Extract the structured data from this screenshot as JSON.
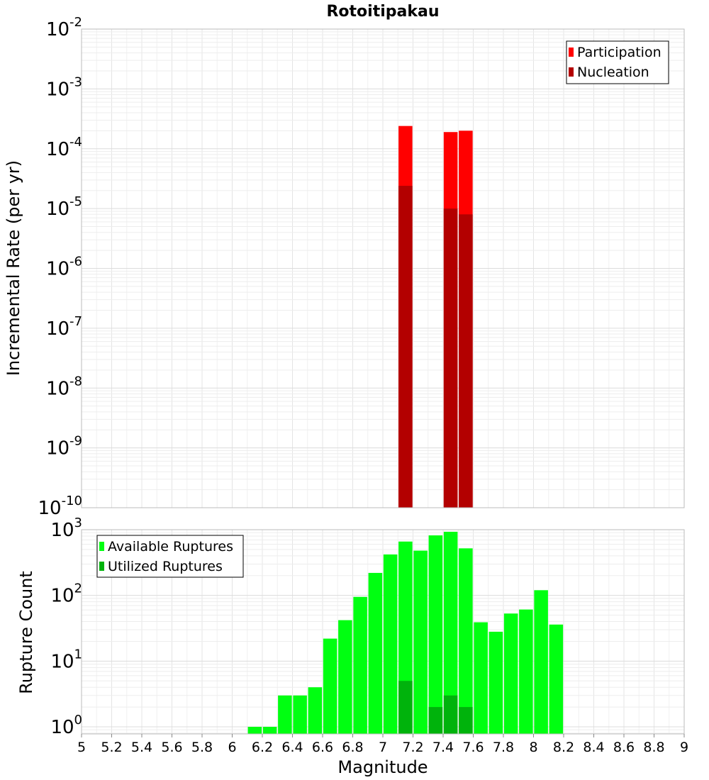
{
  "title": "Rotoitipakau",
  "chart_data": [
    {
      "type": "bar",
      "panel": "incremental-rate",
      "ylabel": "Incremental Rate (per yr)",
      "yscale": "log",
      "ylim": [
        1e-10,
        0.01
      ],
      "xlim": [
        5,
        9
      ],
      "ytick_exponents": [
        "-10",
        "-9",
        "-8",
        "-7",
        "-6",
        "-5",
        "-4",
        "-3",
        "-2"
      ],
      "ytick_base": "10",
      "grid": true,
      "legend_position": "top-right",
      "series": [
        {
          "name": "Participation",
          "color": "#ff0000",
          "points": [
            {
              "x": 7.15,
              "y": 0.00024
            },
            {
              "x": 7.45,
              "y": 0.00019
            },
            {
              "x": 7.55,
              "y": 0.0002
            }
          ]
        },
        {
          "name": "Nucleation",
          "color": "#b30000",
          "points": [
            {
              "x": 7.15,
              "y": 2.4e-05
            },
            {
              "x": 7.45,
              "y": 1e-05
            },
            {
              "x": 7.55,
              "y": 8e-06
            }
          ]
        }
      ]
    },
    {
      "type": "bar",
      "panel": "rupture-count",
      "xlabel": "Magnitude",
      "ylabel": "Rupture Count",
      "yscale": "log",
      "ylim": [
        0.78,
        1000
      ],
      "xlim": [
        5,
        9
      ],
      "xticks": [
        "5",
        "5.2",
        "5.4",
        "5.6",
        "5.8",
        "6",
        "6.2",
        "6.4",
        "6.6",
        "6.8",
        "7",
        "7.2",
        "7.4",
        "7.6",
        "7.8",
        "8",
        "8.2",
        "8.4",
        "8.6",
        "8.8",
        "9"
      ],
      "ytick_exponents": [
        "0",
        "1",
        "2",
        "3"
      ],
      "ytick_base": "10",
      "grid": true,
      "legend_position": "top-left",
      "series": [
        {
          "name": "Available Ruptures",
          "color": "#00ff11",
          "points": [
            {
              "x": 6.15,
              "y": 1
            },
            {
              "x": 6.25,
              "y": 1
            },
            {
              "x": 6.35,
              "y": 3
            },
            {
              "x": 6.45,
              "y": 3
            },
            {
              "x": 6.55,
              "y": 4
            },
            {
              "x": 6.65,
              "y": 22
            },
            {
              "x": 6.75,
              "y": 42
            },
            {
              "x": 6.85,
              "y": 95
            },
            {
              "x": 6.95,
              "y": 220
            },
            {
              "x": 7.05,
              "y": 420
            },
            {
              "x": 7.15,
              "y": 660
            },
            {
              "x": 7.25,
              "y": 480
            },
            {
              "x": 7.35,
              "y": 820
            },
            {
              "x": 7.45,
              "y": 930
            },
            {
              "x": 7.55,
              "y": 520
            },
            {
              "x": 7.65,
              "y": 39
            },
            {
              "x": 7.75,
              "y": 28
            },
            {
              "x": 7.85,
              "y": 53
            },
            {
              "x": 7.95,
              "y": 61
            },
            {
              "x": 8.05,
              "y": 120
            },
            {
              "x": 8.15,
              "y": 36
            }
          ]
        },
        {
          "name": "Utilized Ruptures",
          "color": "#00b30c",
          "points": [
            {
              "x": 7.15,
              "y": 5
            },
            {
              "x": 7.35,
              "y": 2
            },
            {
              "x": 7.45,
              "y": 3
            },
            {
              "x": 7.55,
              "y": 2
            }
          ]
        }
      ]
    }
  ]
}
